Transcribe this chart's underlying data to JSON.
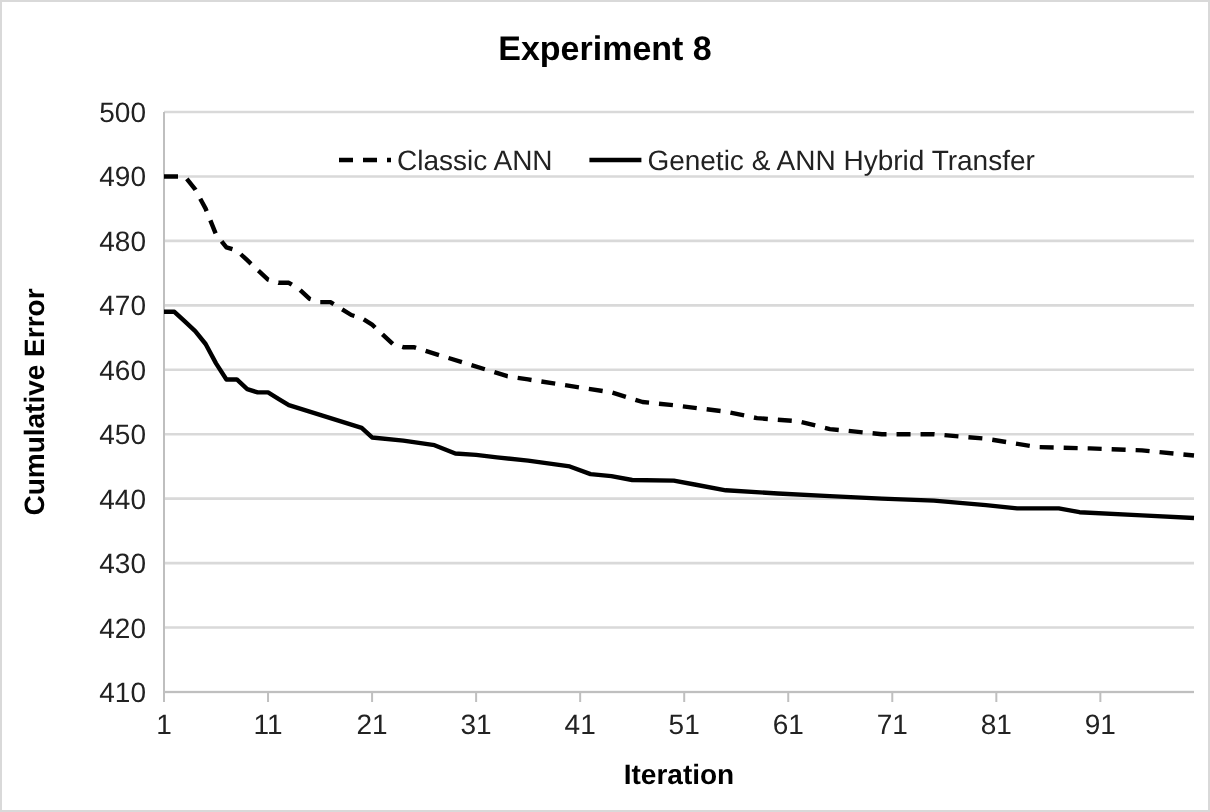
{
  "chart_data": {
    "type": "line",
    "title": "Experiment 8",
    "xlabel": "Iteration",
    "ylabel": "Cumulative Error",
    "xlim": [
      1,
      100
    ],
    "xticks": [
      1,
      11,
      21,
      31,
      41,
      51,
      61,
      71,
      81,
      91
    ],
    "ylim": [
      410,
      500
    ],
    "yticks": [
      410,
      420,
      430,
      440,
      450,
      460,
      470,
      480,
      490,
      500
    ],
    "grid": "y",
    "legend": "top",
    "marker": "none",
    "series": [
      {
        "name": "Classic ANN",
        "color": "#000000",
        "line_style": "dashed",
        "x": [
          1,
          3,
          4,
          5,
          6,
          7,
          8,
          9,
          10,
          11,
          12,
          13,
          14,
          15,
          16,
          17,
          18,
          19,
          20,
          21,
          22,
          23,
          24,
          25,
          26,
          28,
          30,
          32,
          34,
          36,
          40,
          44,
          47,
          50,
          55,
          58,
          62,
          65,
          70,
          75,
          80,
          85,
          90,
          95,
          100
        ],
        "values": [
          490,
          490,
          488,
          485,
          481,
          479,
          478.5,
          477,
          475.5,
          474,
          473.5,
          473.5,
          472.5,
          471,
          470.5,
          470.5,
          469.5,
          468.5,
          468,
          467,
          465.5,
          464,
          463.5,
          463.5,
          463,
          462,
          461,
          460,
          459,
          458.5,
          457.5,
          456.5,
          455,
          454.5,
          453.5,
          452.5,
          452,
          450.8,
          450,
          450,
          449.3,
          448,
          447.8,
          447.5,
          446.7
        ]
      },
      {
        "name": "Genetic & ANN Hybrid Transfer",
        "color": "#000000",
        "line_style": "solid",
        "x": [
          1,
          2,
          3,
          4,
          5,
          6,
          7,
          8,
          9,
          10,
          11,
          12,
          13,
          15,
          17,
          19,
          20,
          21,
          24,
          27,
          29,
          31,
          33,
          36,
          40,
          42,
          44,
          46,
          50,
          52,
          55,
          60,
          65,
          70,
          75,
          80,
          83,
          87,
          89,
          95,
          100
        ],
        "values": [
          469,
          469,
          467.5,
          466,
          464,
          461,
          458.5,
          458.5,
          457,
          456.5,
          456.5,
          455.5,
          454.5,
          453.5,
          452.5,
          451.5,
          451,
          449.5,
          449,
          448.3,
          447,
          446.8,
          446.4,
          445.9,
          445,
          443.8,
          443.5,
          442.9,
          442.8,
          442.2,
          441.3,
          440.8,
          440.4,
          440,
          439.7,
          439,
          438.5,
          438.5,
          437.9,
          437.4,
          437
        ]
      }
    ]
  }
}
